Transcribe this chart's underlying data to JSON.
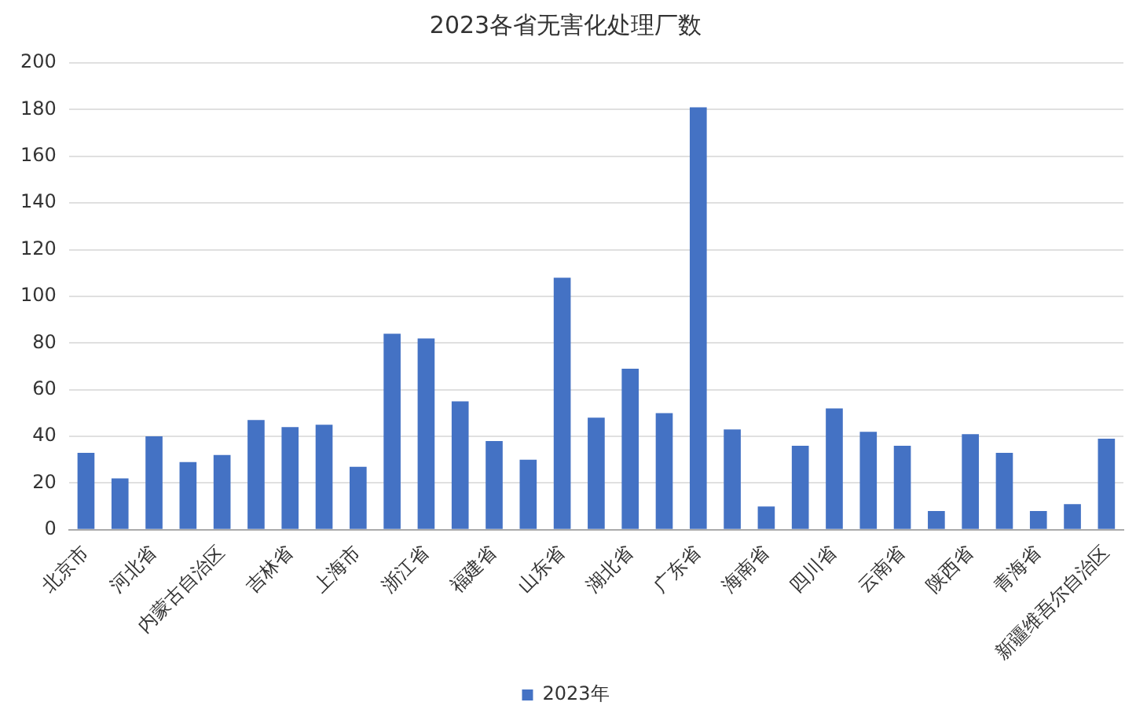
{
  "chart_data": {
    "type": "bar",
    "title": "2023各省无害化处理厂数",
    "categories": [
      "北京市",
      null,
      "河北省",
      null,
      "内蒙古自治区",
      null,
      "吉林省",
      null,
      "上海市",
      null,
      "浙江省",
      null,
      "福建省",
      null,
      "山东省",
      null,
      "湖北省",
      null,
      "广东省",
      null,
      "海南省",
      null,
      "四川省",
      null,
      "云南省",
      null,
      "陕西省",
      null,
      "青海省",
      null,
      "新疆维吾尔自治区"
    ],
    "series": [
      {
        "name": "2023年",
        "color": "#4472c4",
        "values": [
          33,
          22,
          40,
          29,
          32,
          47,
          44,
          45,
          27,
          84,
          82,
          55,
          38,
          30,
          108,
          48,
          69,
          50,
          181,
          43,
          10,
          36,
          52,
          42,
          36,
          8,
          41,
          33,
          8,
          11,
          39
        ]
      }
    ],
    "ylim": [
      0,
      200
    ],
    "yticks": [
      0,
      20,
      40,
      60,
      80,
      100,
      120,
      140,
      160,
      180,
      200
    ],
    "grid": "y",
    "legend": "bottom"
  }
}
